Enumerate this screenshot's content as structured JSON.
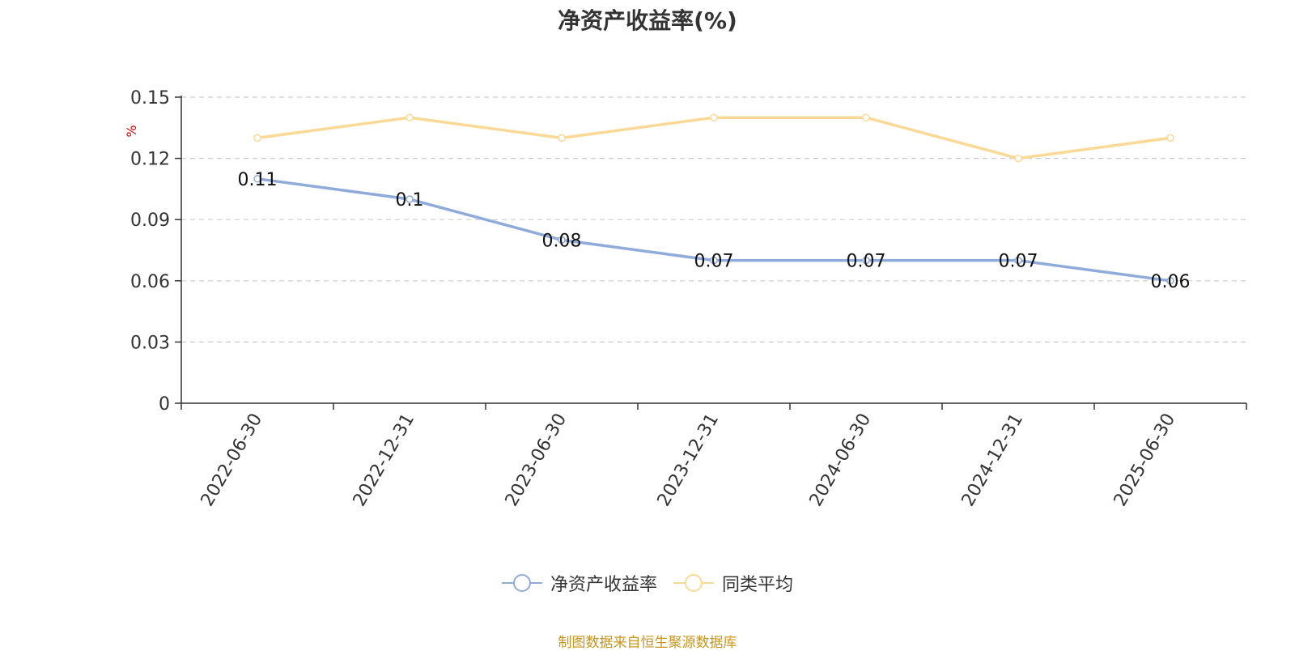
{
  "title": "净资产收益率(%)",
  "source_note": "制图数据来自恒生聚源数据库",
  "colors": {
    "series_main": "#8fabdb",
    "series_avg": "#fad996",
    "y_unit": "#e00000",
    "source_note": "#c8961e"
  },
  "chart_data": {
    "type": "line",
    "title": "净资产收益率(%)",
    "x": [
      "2022-06-30",
      "2022-12-31",
      "2023-06-30",
      "2023-12-31",
      "2024-06-30",
      "2024-12-31",
      "2025-06-30"
    ],
    "ylabel": "%",
    "ylim": [
      0,
      0.15
    ],
    "yticks": [
      "0",
      "0.03",
      "0.06",
      "0.09",
      "0.12",
      "0.15"
    ],
    "grid": true,
    "legend_position": "bottom",
    "series": [
      {
        "name": "净资产收益率",
        "values": [
          0.11,
          0.1,
          0.08,
          0.07,
          0.07,
          0.07,
          0.06
        ],
        "labels": [
          "0.11",
          "0.1",
          "0.08",
          "0.07",
          "0.07",
          "0.07",
          "0.06"
        ]
      },
      {
        "name": "同类平均",
        "values": [
          0.13,
          0.14,
          0.13,
          0.14,
          0.14,
          0.12,
          0.13
        ]
      }
    ]
  }
}
